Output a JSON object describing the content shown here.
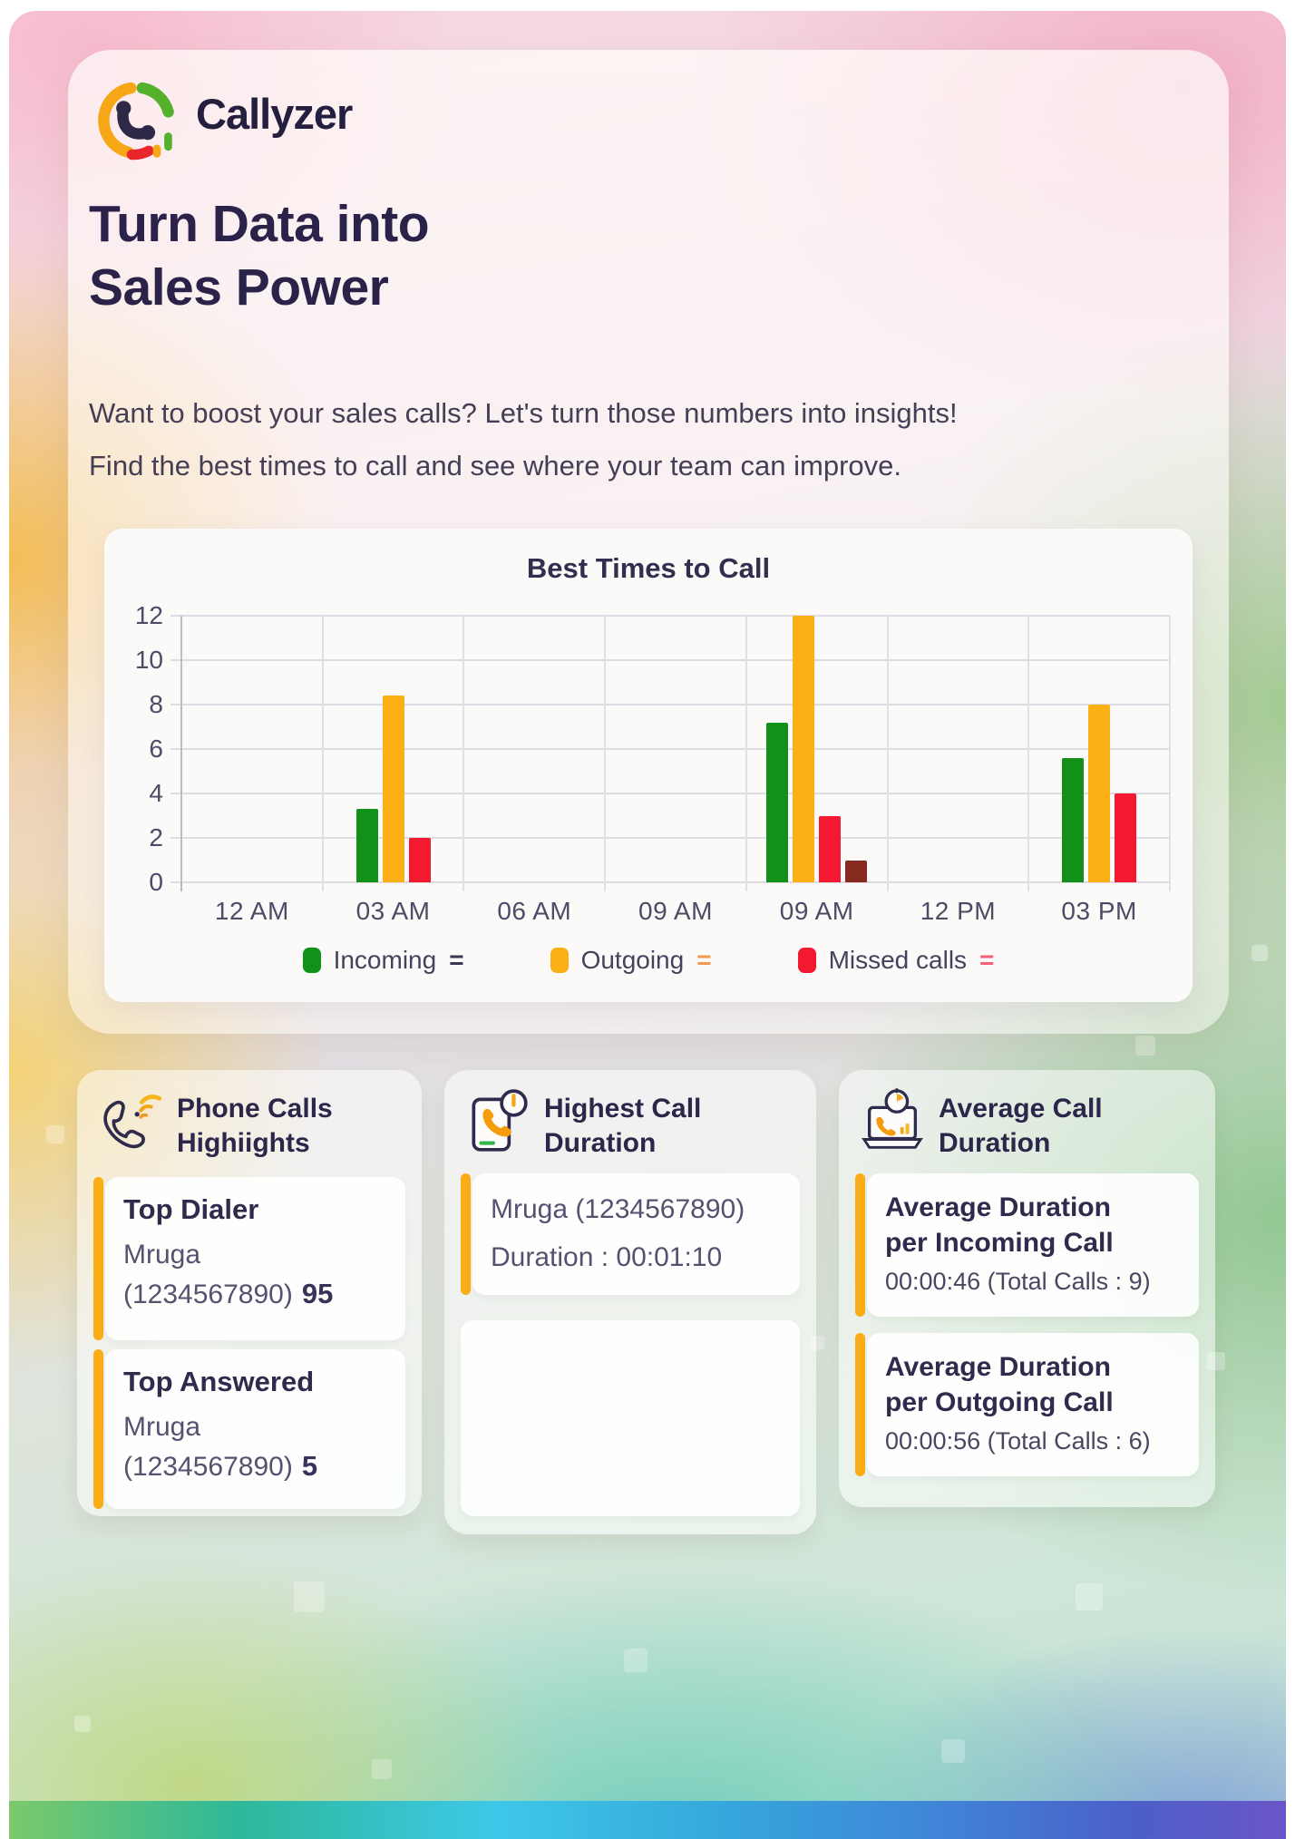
{
  "brand": {
    "name": "Callyzer"
  },
  "hero": {
    "title_line1": "Turn Data into",
    "title_line2": "Sales Power",
    "subtitle_line1": "Want to boost your sales calls? Let's turn those numbers into insights!",
    "subtitle_line2": "Find the best times to call and see where your team can improve."
  },
  "colors": {
    "accent_orange": "#fbad18",
    "bar_green": "#12911a",
    "bar_orange": "#fbb016",
    "bar_red": "#f31930",
    "bar_maroon": "#8a2822"
  },
  "chart_data": {
    "type": "bar",
    "title": "Best Times to Call",
    "categories": [
      "12 AM",
      "03 AM",
      "06 AM",
      "09 AM",
      "09 AM",
      "12 PM",
      "03 PM"
    ],
    "series": [
      {
        "name": "Incoming",
        "color": "#12911a",
        "values": [
          0,
          3.3,
          0,
          0,
          7.2,
          0,
          5.6
        ]
      },
      {
        "name": "Outgoing",
        "color": "#fbb016",
        "values": [
          0,
          8.4,
          0,
          0,
          12,
          0,
          8
        ]
      },
      {
        "name": "Missed calls",
        "color": "#f31930",
        "values": [
          0,
          2,
          0,
          0,
          3,
          0,
          4
        ]
      },
      {
        "name": "",
        "color": "#8a2822",
        "values": [
          0,
          0,
          0,
          0,
          1,
          0,
          0
        ]
      }
    ],
    "ylim": [
      0,
      12
    ],
    "yticks": [
      0,
      2,
      4,
      6,
      8,
      10,
      12
    ],
    "grid": true,
    "legend_position": "bottom",
    "legend": [
      {
        "label": "Incoming",
        "swatch": "#12911a",
        "suffix": "=",
        "suffix_color": "#3a3753"
      },
      {
        "label": "Outgoing",
        "swatch": "#fbb016",
        "suffix": "=",
        "suffix_color": "#ef9a4f"
      },
      {
        "label": "Missed calls",
        "swatch": "#f31930",
        "suffix": "=",
        "suffix_color": "#f4607a"
      }
    ]
  },
  "cards": [
    {
      "title_line1": "Phone Calls",
      "title_line2": "Highiights",
      "items": [
        {
          "title": "Top Dialer",
          "line1": "Mruga",
          "line2": "(1234567890)",
          "value": "95"
        },
        {
          "title": "Top Answered",
          "line1": "Mruga",
          "line2": "(1234567890)",
          "value": "5"
        }
      ]
    },
    {
      "title_line1": "Highest Call",
      "title_line2": "Duration",
      "items": [
        {
          "line1": "Mruga (1234567890)",
          "line2": "Duration : 00:01:10"
        },
        {
          "empty": true
        }
      ]
    },
    {
      "title_line1": "Average Call",
      "title_line2": "Duration",
      "items": [
        {
          "title_line1": "Average Duration",
          "title_line2": "per Incoming Call",
          "value_line": "00:00:46 (Total Calls : 9)"
        },
        {
          "title_line1": "Average Duration",
          "title_line2": "per Outgoing Call",
          "value_line": "00:00:56 (Total Calls : 6)"
        }
      ]
    }
  ]
}
